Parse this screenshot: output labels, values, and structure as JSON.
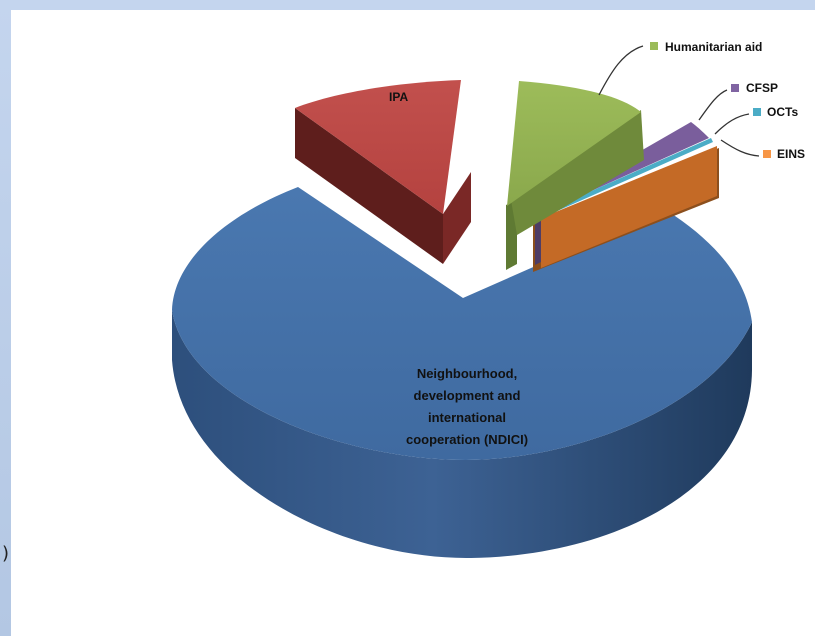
{
  "chart_data": {
    "type": "pie",
    "title": "",
    "categories": [
      "IPA",
      "Humanitarian aid",
      "CFSP",
      "OCTs",
      "EINS",
      "Neighbourhood, development and international cooperation (NDICI)"
    ],
    "values": [
      10.0,
      9.5,
      2.3,
      0.5,
      8.7,
      69.0
    ],
    "colors": [
      "#c0504d",
      "#9bbb59",
      "#8064a2",
      "#4bacc6",
      "#f79646",
      "#4f81bd"
    ],
    "legend_placement": "callouts-right",
    "slice_labels": {
      "ipa": "IPA",
      "ndici": [
        "Neighbourhood,",
        "development and",
        "international",
        "cooperation (NDICI)"
      ]
    },
    "legend": [
      {
        "label": "Humanitarian aid",
        "color": "#9bbb59"
      },
      {
        "label": "CFSP",
        "color": "#8064a2"
      },
      {
        "label": "OCTs",
        "color": "#4bacc6"
      },
      {
        "label": "EINS",
        "color": "#f79646"
      }
    ]
  },
  "stray_glyph": ")"
}
